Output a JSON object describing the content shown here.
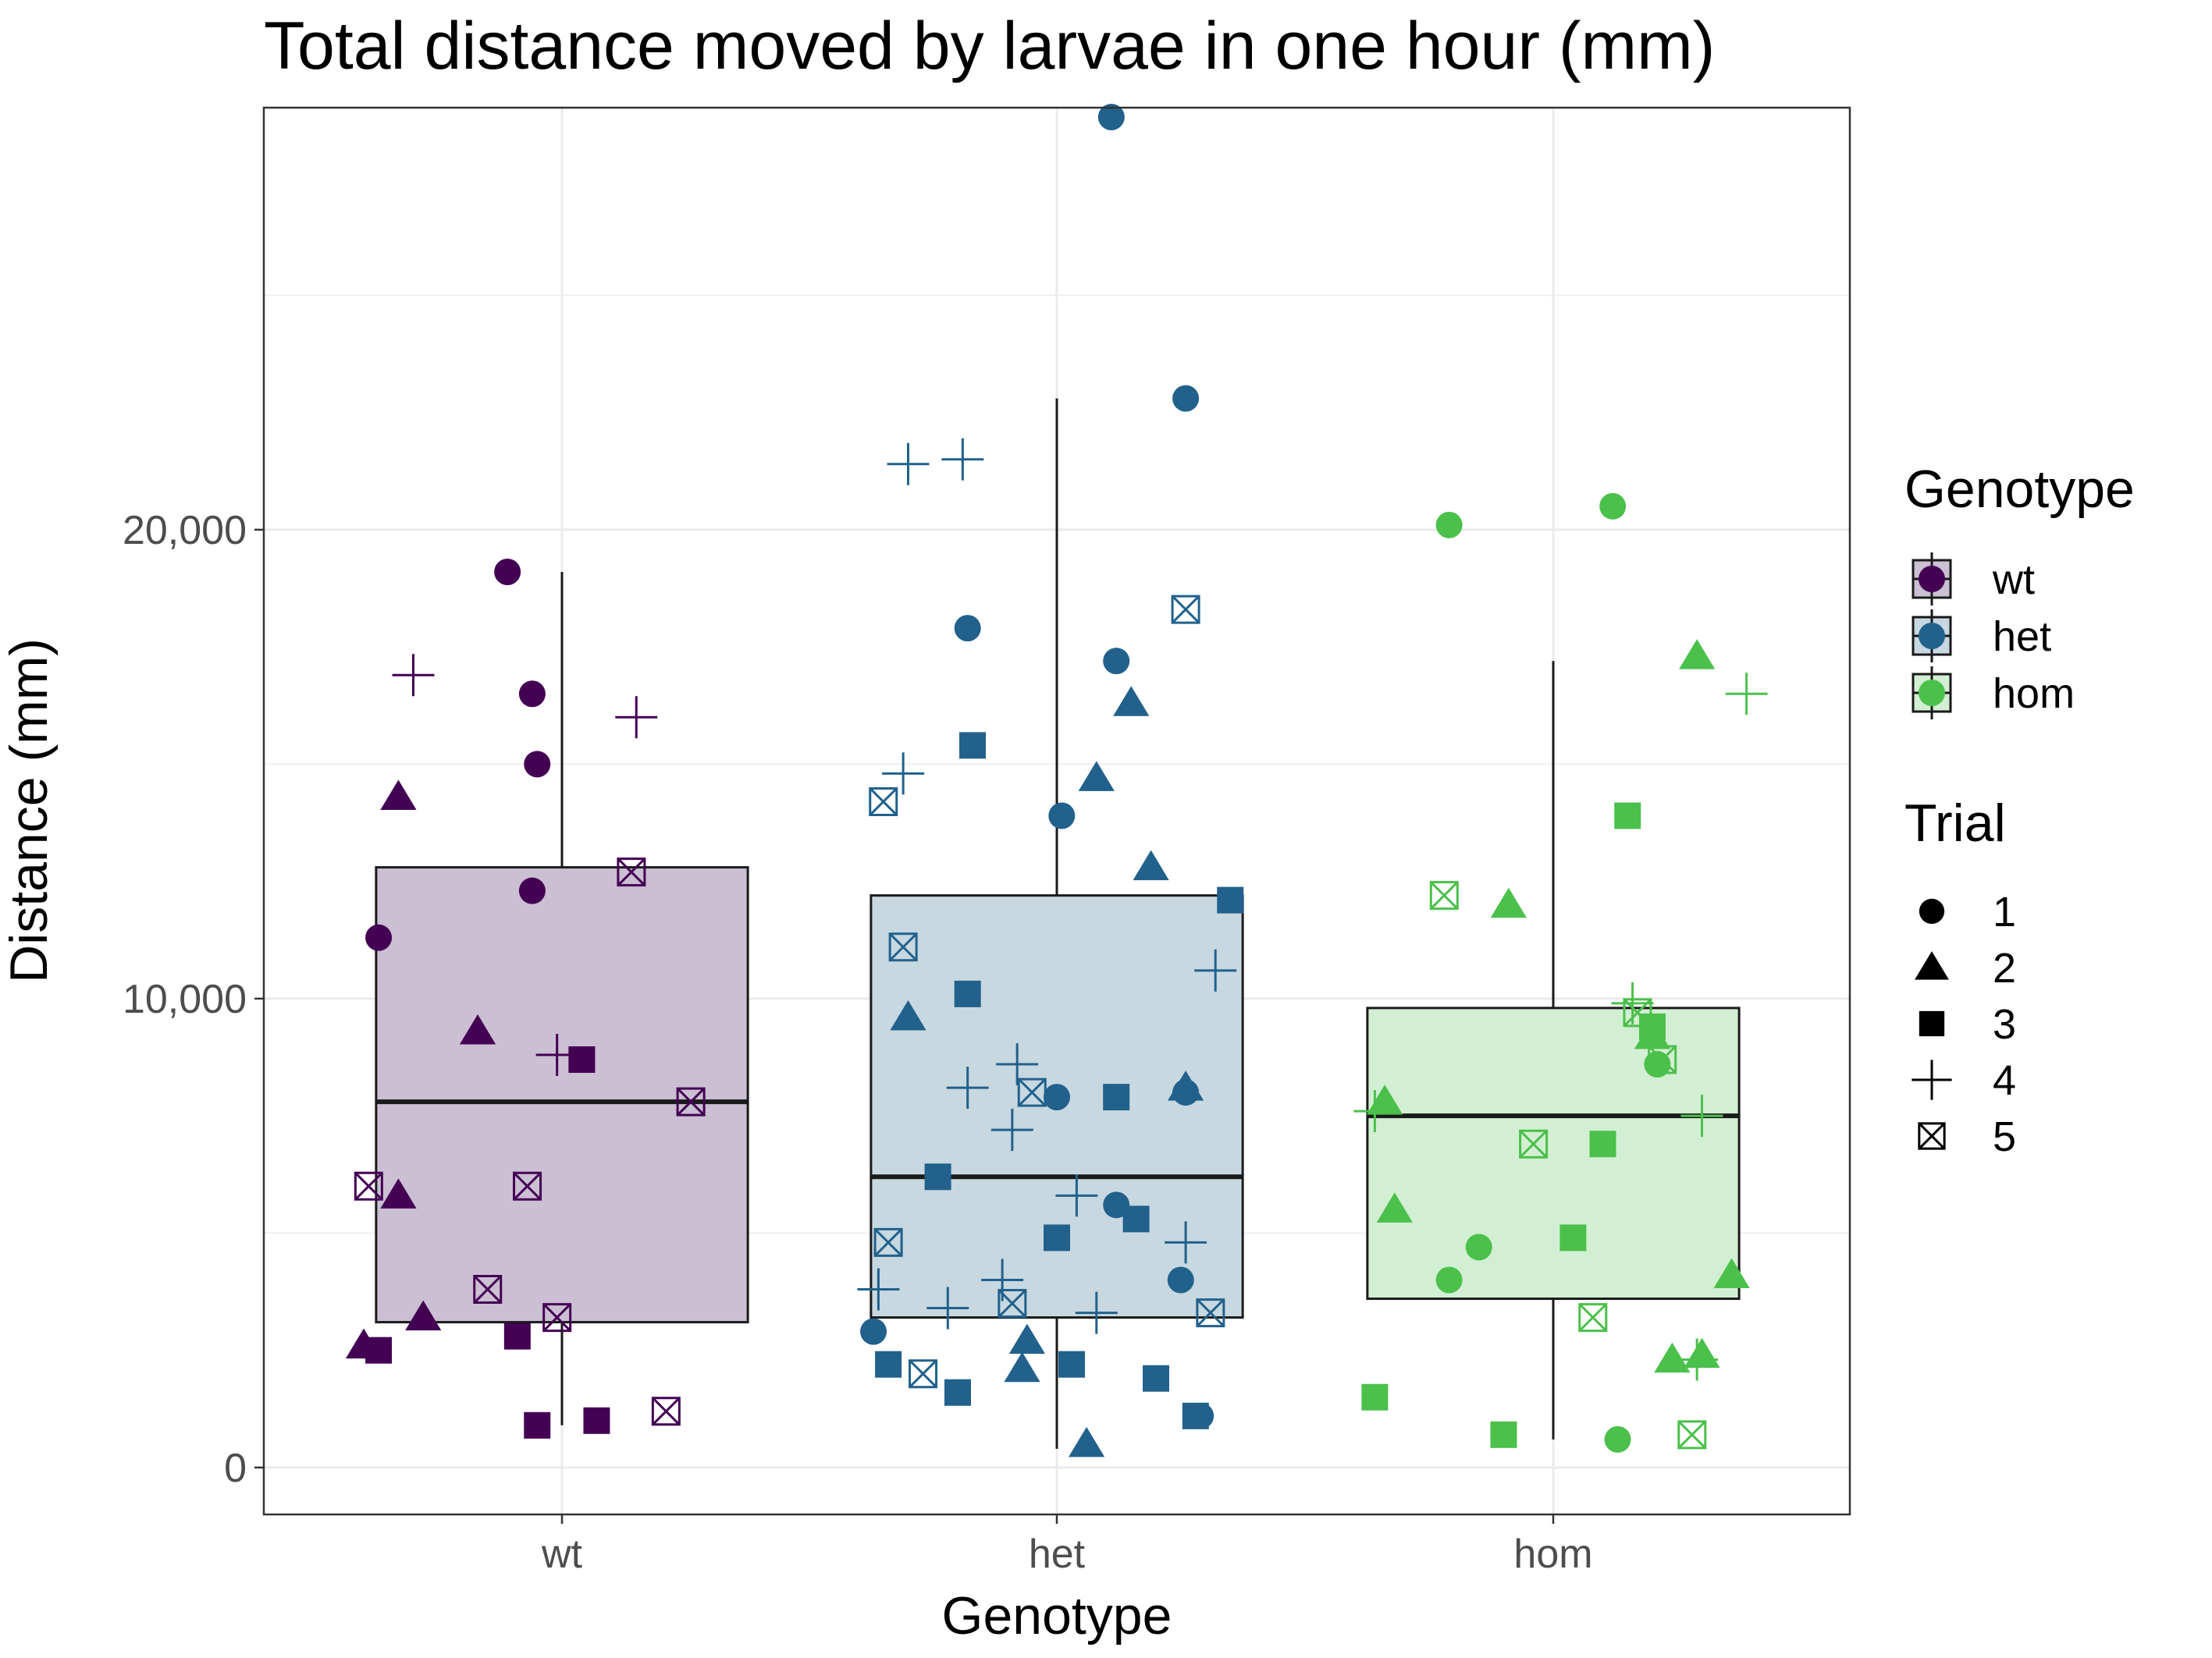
{
  "chart_data": {
    "type": "box",
    "title": "Total distance moved by larvae in one hour (mm)",
    "xlabel": "Genotype",
    "ylabel": "Distance (mm)",
    "categories": [
      "wt",
      "het",
      "hom"
    ],
    "ylim": [
      -1000,
      29000
    ],
    "yticks": [
      0,
      10000,
      20000
    ],
    "ytick_labels": [
      "0",
      "10,000",
      "20,000"
    ],
    "grid": true,
    "colors": {
      "wt": "#440154",
      "het": "#21618c",
      "hom": "#4bc04b"
    },
    "box_fill": {
      "wt": "#cbbfd3",
      "het": "#c8d8e0",
      "hom": "#d3efd3"
    },
    "boxes": [
      {
        "genotype": "wt",
        "whisker_low": 900,
        "q1": 3100,
        "median": 7800,
        "q3": 12800,
        "whisker_high": 19100
      },
      {
        "genotype": "het",
        "whisker_low": 400,
        "q1": 3200,
        "median": 6200,
        "q3": 12200,
        "whisker_high": 22800
      },
      {
        "genotype": "hom",
        "whisker_low": 600,
        "q1": 3600,
        "median": 7500,
        "q3": 9800,
        "whisker_high": 17200
      }
    ],
    "series": [
      {
        "genotype": "wt",
        "points": [
          {
            "jitter": -0.11,
            "y": 19100,
            "trial": 1
          },
          {
            "jitter": -0.06,
            "y": 16500,
            "trial": 1
          },
          {
            "jitter": -0.05,
            "y": 15000,
            "trial": 1
          },
          {
            "jitter": -0.06,
            "y": 12300,
            "trial": 1
          },
          {
            "jitter": -0.37,
            "y": 11300,
            "trial": 1
          },
          {
            "jitter": -0.33,
            "y": 14300,
            "trial": 2
          },
          {
            "jitter": -0.17,
            "y": 9300,
            "trial": 2
          },
          {
            "jitter": -0.33,
            "y": 5800,
            "trial": 2
          },
          {
            "jitter": -0.28,
            "y": 3200,
            "trial": 2
          },
          {
            "jitter": -0.4,
            "y": 2600,
            "trial": 2
          },
          {
            "jitter": 0.04,
            "y": 8700,
            "trial": 3
          },
          {
            "jitter": -0.09,
            "y": 2800,
            "trial": 3
          },
          {
            "jitter": -0.37,
            "y": 2500,
            "trial": 3
          },
          {
            "jitter": -0.05,
            "y": 900,
            "trial": 3
          },
          {
            "jitter": 0.07,
            "y": 1000,
            "trial": 3
          },
          {
            "jitter": -0.3,
            "y": 16900,
            "trial": 4
          },
          {
            "jitter": 0.15,
            "y": 16000,
            "trial": 4
          },
          {
            "jitter": -0.01,
            "y": 8800,
            "trial": 4
          },
          {
            "jitter": 0.14,
            "y": 12700,
            "trial": 5
          },
          {
            "jitter": 0.26,
            "y": 7800,
            "trial": 5
          },
          {
            "jitter": -0.39,
            "y": 6000,
            "trial": 5
          },
          {
            "jitter": -0.07,
            "y": 6000,
            "trial": 5
          },
          {
            "jitter": -0.15,
            "y": 3800,
            "trial": 5
          },
          {
            "jitter": -0.01,
            "y": 3200,
            "trial": 5
          },
          {
            "jitter": 0.21,
            "y": 1200,
            "trial": 5
          }
        ]
      },
      {
        "genotype": "het",
        "points": [
          {
            "jitter": 0.11,
            "y": 28800,
            "trial": 1
          },
          {
            "jitter": 0.26,
            "y": 22800,
            "trial": 1
          },
          {
            "jitter": -0.18,
            "y": 17900,
            "trial": 1
          },
          {
            "jitter": 0.12,
            "y": 17200,
            "trial": 1
          },
          {
            "jitter": 0.01,
            "y": 13900,
            "trial": 1
          },
          {
            "jitter": 0.0,
            "y": 7900,
            "trial": 1
          },
          {
            "jitter": 0.26,
            "y": 8000,
            "trial": 1
          },
          {
            "jitter": 0.12,
            "y": 5600,
            "trial": 1
          },
          {
            "jitter": 0.25,
            "y": 4000,
            "trial": 1
          },
          {
            "jitter": -0.37,
            "y": 2900,
            "trial": 1
          },
          {
            "jitter": 0.29,
            "y": 1100,
            "trial": 1
          },
          {
            "jitter": 0.15,
            "y": 16300,
            "trial": 2
          },
          {
            "jitter": 0.08,
            "y": 14700,
            "trial": 2
          },
          {
            "jitter": 0.19,
            "y": 12800,
            "trial": 2
          },
          {
            "jitter": -0.3,
            "y": 9600,
            "trial": 2
          },
          {
            "jitter": 0.26,
            "y": 8100,
            "trial": 2
          },
          {
            "jitter": -0.06,
            "y": 2700,
            "trial": 2
          },
          {
            "jitter": -0.07,
            "y": 2100,
            "trial": 2
          },
          {
            "jitter": 0.06,
            "y": 500,
            "trial": 2
          },
          {
            "jitter": -0.17,
            "y": 15400,
            "trial": 3
          },
          {
            "jitter": 0.35,
            "y": 12100,
            "trial": 3
          },
          {
            "jitter": -0.18,
            "y": 10100,
            "trial": 3
          },
          {
            "jitter": 0.12,
            "y": 7900,
            "trial": 3
          },
          {
            "jitter": -0.24,
            "y": 6200,
            "trial": 3
          },
          {
            "jitter": 0.0,
            "y": 4900,
            "trial": 3
          },
          {
            "jitter": 0.16,
            "y": 5300,
            "trial": 3
          },
          {
            "jitter": -0.34,
            "y": 2200,
            "trial": 3
          },
          {
            "jitter": 0.03,
            "y": 2200,
            "trial": 3
          },
          {
            "jitter": -0.2,
            "y": 1600,
            "trial": 3
          },
          {
            "jitter": 0.2,
            "y": 1900,
            "trial": 3
          },
          {
            "jitter": 0.28,
            "y": 1100,
            "trial": 3
          },
          {
            "jitter": -0.3,
            "y": 21400,
            "trial": 4
          },
          {
            "jitter": -0.19,
            "y": 21500,
            "trial": 4
          },
          {
            "jitter": -0.31,
            "y": 14800,
            "trial": 4
          },
          {
            "jitter": 0.32,
            "y": 10600,
            "trial": 4
          },
          {
            "jitter": -0.08,
            "y": 8600,
            "trial": 4
          },
          {
            "jitter": -0.18,
            "y": 8100,
            "trial": 4
          },
          {
            "jitter": -0.09,
            "y": 7200,
            "trial": 4
          },
          {
            "jitter": 0.04,
            "y": 5800,
            "trial": 4
          },
          {
            "jitter": 0.26,
            "y": 4800,
            "trial": 4
          },
          {
            "jitter": -0.36,
            "y": 3800,
            "trial": 4
          },
          {
            "jitter": -0.11,
            "y": 4000,
            "trial": 4
          },
          {
            "jitter": -0.22,
            "y": 3400,
            "trial": 4
          },
          {
            "jitter": 0.08,
            "y": 3300,
            "trial": 4
          },
          {
            "jitter": 0.26,
            "y": 18300,
            "trial": 5
          },
          {
            "jitter": -0.35,
            "y": 14200,
            "trial": 5
          },
          {
            "jitter": -0.31,
            "y": 11100,
            "trial": 5
          },
          {
            "jitter": -0.05,
            "y": 8000,
            "trial": 5
          },
          {
            "jitter": -0.34,
            "y": 4800,
            "trial": 5
          },
          {
            "jitter": -0.09,
            "y": 3500,
            "trial": 5
          },
          {
            "jitter": 0.31,
            "y": 3300,
            "trial": 5
          },
          {
            "jitter": -0.27,
            "y": 2000,
            "trial": 5
          }
        ]
      },
      {
        "genotype": "hom",
        "points": [
          {
            "jitter": -0.21,
            "y": 20100,
            "trial": 1
          },
          {
            "jitter": 0.12,
            "y": 20500,
            "trial": 1
          },
          {
            "jitter": 0.21,
            "y": 8600,
            "trial": 1
          },
          {
            "jitter": -0.15,
            "y": 4700,
            "trial": 1
          },
          {
            "jitter": -0.21,
            "y": 4000,
            "trial": 1
          },
          {
            "jitter": 0.13,
            "y": 600,
            "trial": 1
          },
          {
            "jitter": 0.29,
            "y": 17300,
            "trial": 2
          },
          {
            "jitter": -0.09,
            "y": 12000,
            "trial": 2
          },
          {
            "jitter": 0.2,
            "y": 9200,
            "trial": 2
          },
          {
            "jitter": -0.34,
            "y": 7800,
            "trial": 2
          },
          {
            "jitter": -0.32,
            "y": 5500,
            "trial": 2
          },
          {
            "jitter": 0.36,
            "y": 4100,
            "trial": 2
          },
          {
            "jitter": 0.24,
            "y": 2300,
            "trial": 2
          },
          {
            "jitter": 0.3,
            "y": 2400,
            "trial": 2
          },
          {
            "jitter": 0.15,
            "y": 13900,
            "trial": 3
          },
          {
            "jitter": 0.2,
            "y": 9400,
            "trial": 3
          },
          {
            "jitter": 0.1,
            "y": 6900,
            "trial": 3
          },
          {
            "jitter": 0.04,
            "y": 4900,
            "trial": 3
          },
          {
            "jitter": -0.36,
            "y": 1500,
            "trial": 3
          },
          {
            "jitter": -0.1,
            "y": 700,
            "trial": 3
          },
          {
            "jitter": 0.39,
            "y": 16500,
            "trial": 4
          },
          {
            "jitter": 0.16,
            "y": 9900,
            "trial": 4
          },
          {
            "jitter": -0.36,
            "y": 7600,
            "trial": 4
          },
          {
            "jitter": 0.3,
            "y": 7500,
            "trial": 4
          },
          {
            "jitter": 0.29,
            "y": 2300,
            "trial": 4
          },
          {
            "jitter": -0.22,
            "y": 12200,
            "trial": 5
          },
          {
            "jitter": 0.17,
            "y": 9700,
            "trial": 5
          },
          {
            "jitter": 0.22,
            "y": 8700,
            "trial": 5
          },
          {
            "jitter": -0.04,
            "y": 6900,
            "trial": 5
          },
          {
            "jitter": 0.08,
            "y": 3200,
            "trial": 5
          },
          {
            "jitter": 0.28,
            "y": 700,
            "trial": 5
          }
        ]
      }
    ],
    "legend": {
      "placement": "right",
      "genotype_title": "Genotype",
      "genotype_entries": [
        "wt",
        "het",
        "hom"
      ],
      "trial_title": "Trial",
      "trial_entries": [
        "1",
        "2",
        "3",
        "4",
        "5"
      ]
    }
  }
}
